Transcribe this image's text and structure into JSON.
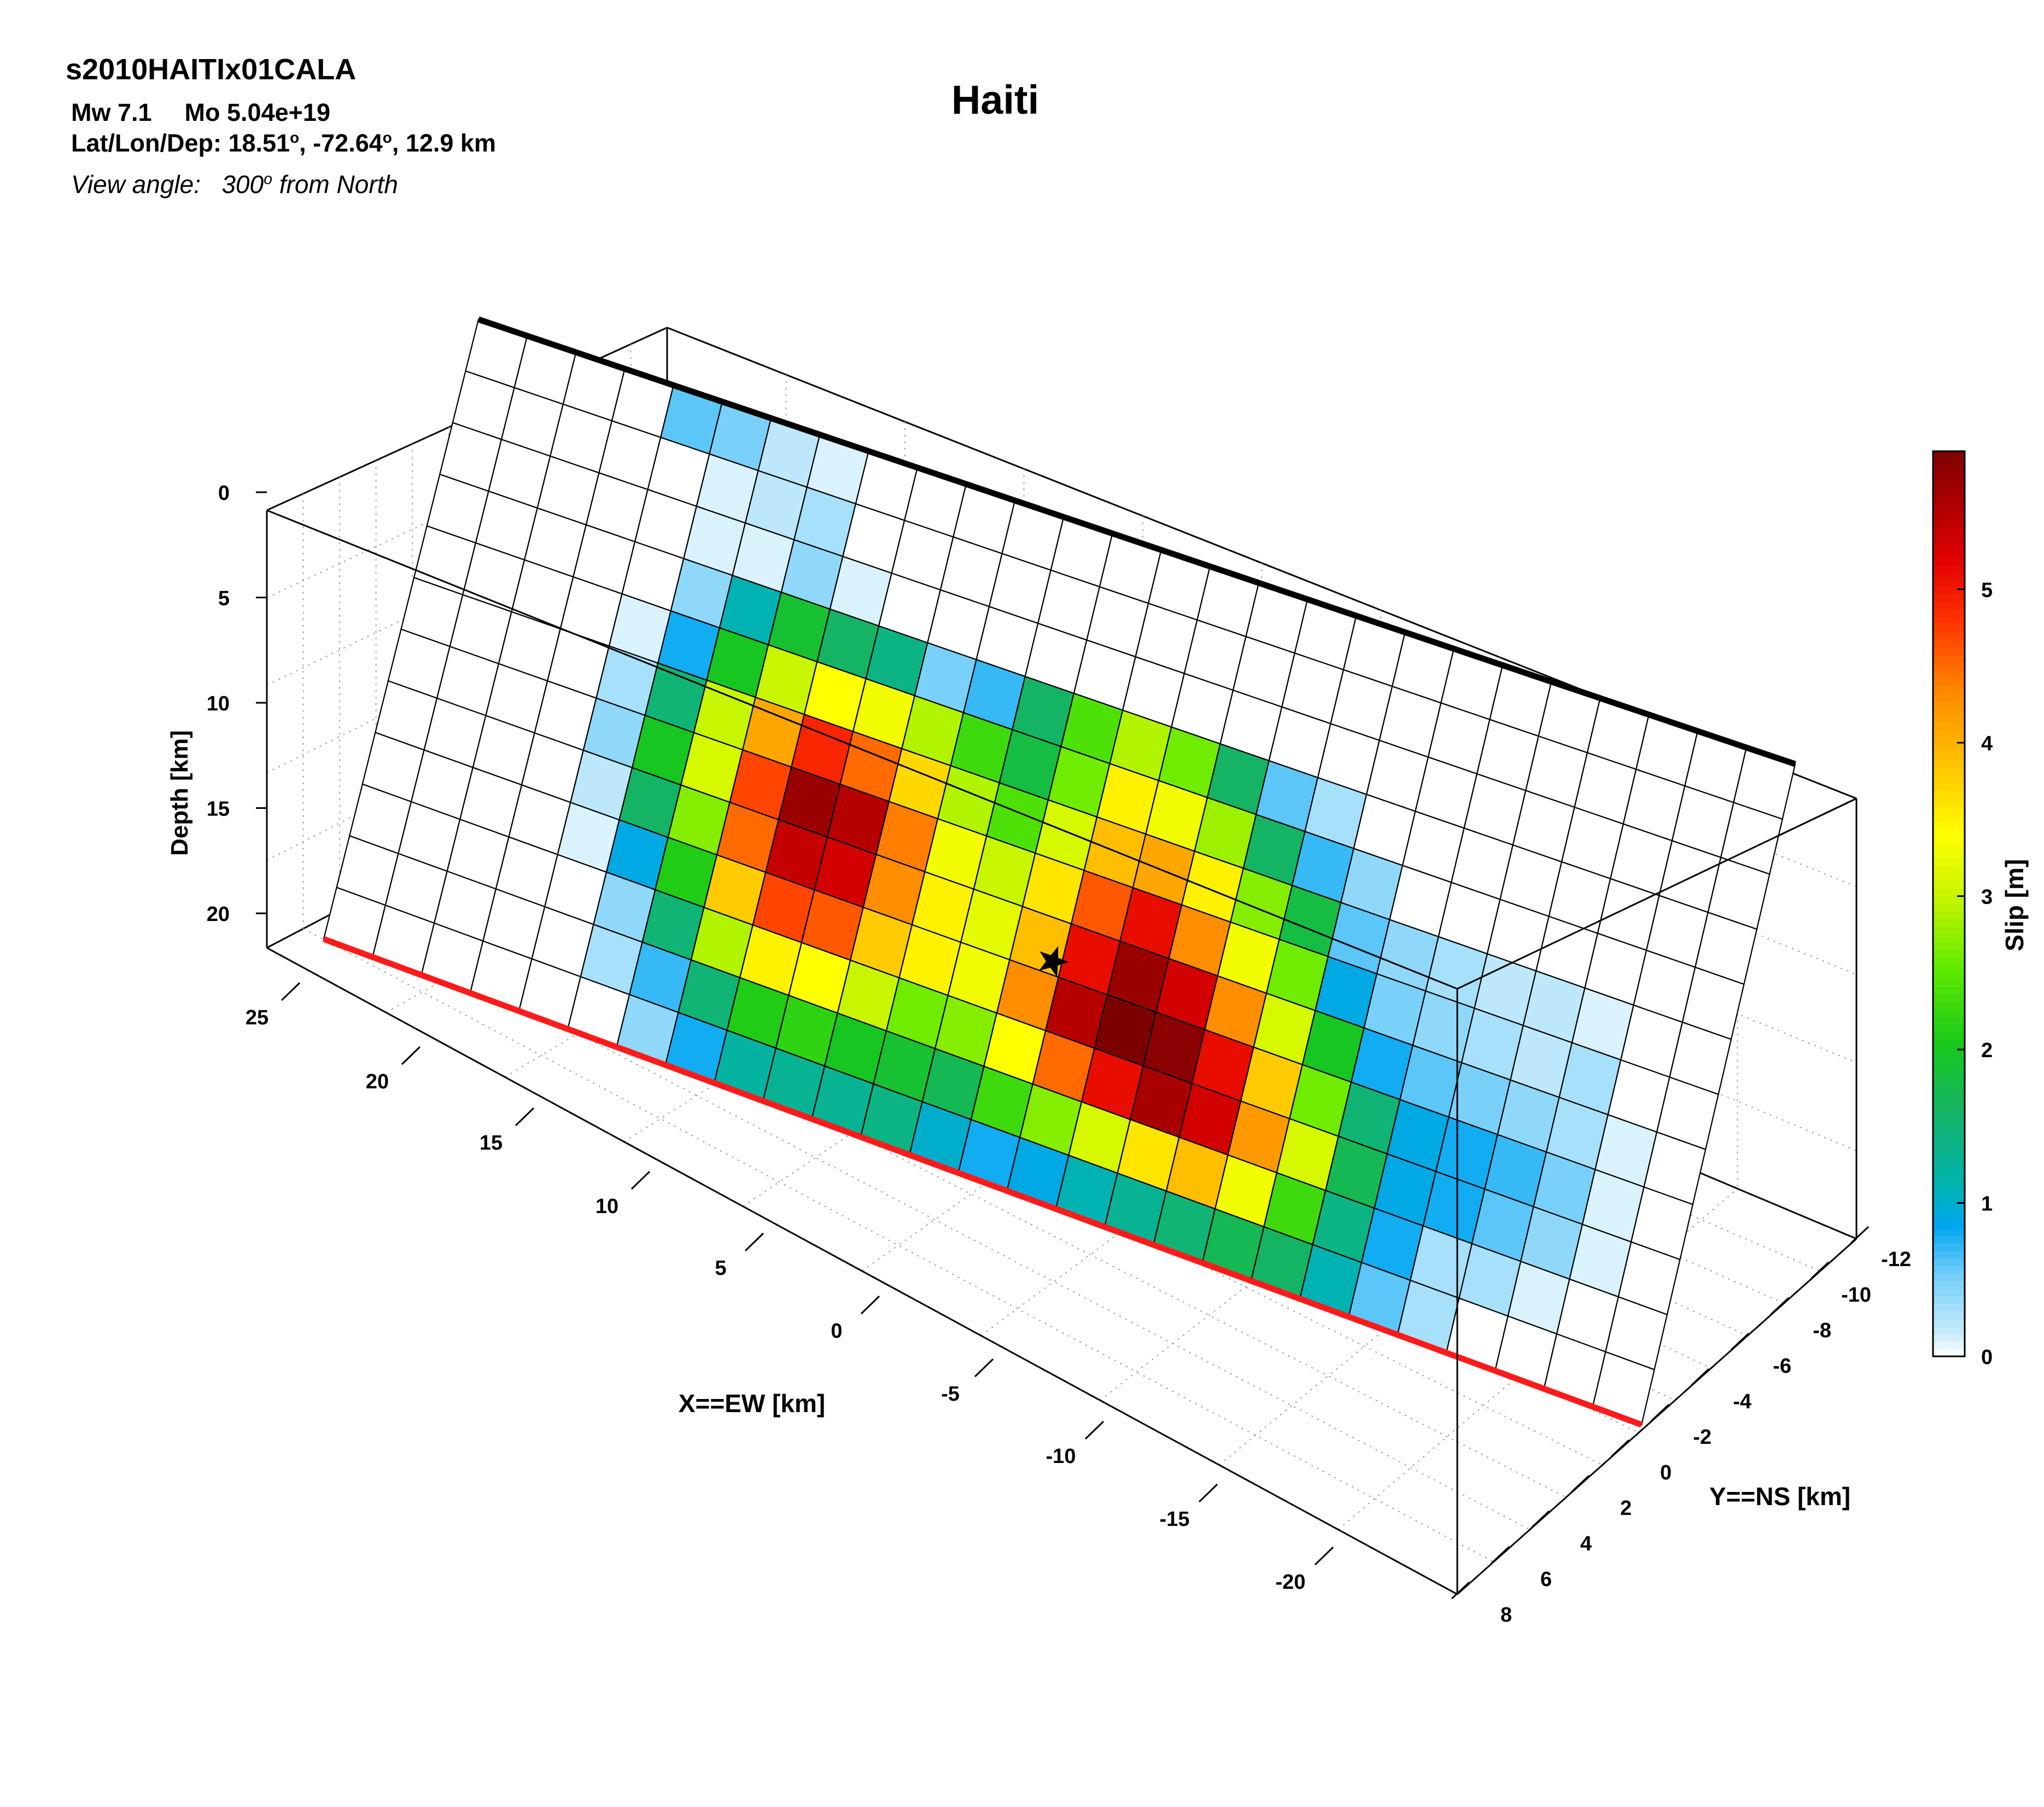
{
  "header": {
    "event_id": "s2010HAITIx01CALA",
    "magnitude": "Mw 7.1",
    "moment": "Mo 5.04e+19",
    "location_label": "Lat/Lon/Dep: ",
    "lat": "18.51",
    "lon": "-72.64",
    "depth_text": "12.9 km",
    "view_label": "View angle:",
    "view_value": "300",
    "view_suffix": "from North"
  },
  "chart_data": {
    "type": "heatmap",
    "title": "Haiti",
    "xlabel": "X==EW [km]",
    "ylabel": "Y==NS [km]",
    "zlabel": "Depth [km]",
    "x_ticks": [
      25,
      20,
      15,
      10,
      5,
      0,
      -5,
      -10,
      -15,
      -20
    ],
    "y_ticks": [
      -12,
      -10,
      -8,
      -6,
      -4,
      -2,
      0,
      2,
      4,
      6,
      8
    ],
    "z_ticks": [
      0,
      5,
      10,
      15,
      20
    ],
    "colorbar": {
      "label": "Slip [m]",
      "ticks": [
        0,
        1,
        2,
        3,
        4,
        5
      ],
      "range": [
        0,
        5.9
      ]
    },
    "grid": "on",
    "legend": "colorbar right",
    "fault_top_edge_color": "#000000",
    "fault_bottom_edge_color": "#ff1a1a",
    "hypocenter": {
      "lat": 18.51,
      "lon": -72.64,
      "depth_km": 12.9
    },
    "strike_cells": 27,
    "dip_cells": 12,
    "slip_m": [
      [
        0,
        0,
        0,
        0,
        0.6,
        0.5,
        0.2,
        0.1,
        0,
        0,
        0,
        0,
        0,
        0,
        0,
        0,
        0,
        0,
        0,
        0,
        0,
        0,
        0,
        0,
        0,
        0,
        0
      ],
      [
        0,
        0,
        0,
        0,
        0,
        0.1,
        0.2,
        0.3,
        0,
        0,
        0,
        0,
        0,
        0,
        0,
        0,
        0,
        0,
        0,
        0,
        0,
        0,
        0,
        0,
        0,
        0,
        0
      ],
      [
        0,
        0,
        0,
        0,
        0,
        0.1,
        0.1,
        0.4,
        0.1,
        0,
        0,
        0,
        0,
        0,
        0,
        0,
        0,
        0,
        0,
        0,
        0,
        0,
        0,
        0,
        0,
        0,
        0
      ],
      [
        0,
        0,
        0,
        0,
        0,
        0.4,
        1.1,
        1.9,
        1.6,
        1.4,
        0.5,
        0.7,
        1.6,
        2.4,
        2.9,
        2.6,
        1.6,
        0.6,
        0.3,
        0,
        0,
        0,
        0,
        0,
        0,
        0,
        0
      ],
      [
        0,
        0,
        0,
        0,
        0.1,
        0.8,
        2.0,
        3.0,
        3.4,
        3.3,
        2.9,
        2.3,
        1.8,
        2.6,
        3.5,
        3.3,
        2.8,
        1.6,
        0.7,
        0.4,
        0,
        0,
        0,
        0,
        0,
        0,
        0
      ],
      [
        0,
        0,
        0,
        0,
        0.3,
        1.5,
        3.0,
        4.1,
        4.9,
        4.5,
        3.7,
        2.9,
        2.4,
        3.1,
        3.9,
        4.1,
        3.5,
        2.7,
        1.8,
        0.6,
        0.4,
        0.3,
        0.2,
        0.2,
        0.1,
        0,
        0
      ],
      [
        0,
        0,
        0,
        0,
        0.4,
        2.0,
        3.1,
        4.7,
        5.7,
        5.5,
        4.4,
        3.3,
        3.0,
        3.6,
        4.6,
        5.1,
        4.3,
        3.3,
        2.6,
        0.9,
        0.5,
        0.4,
        0.3,
        0.2,
        0.3,
        0,
        0
      ],
      [
        0,
        0,
        0,
        0,
        0.2,
        1.6,
        2.7,
        4.5,
        5.4,
        5.3,
        4.3,
        3.5,
        3.2,
        3.9,
        5.1,
        5.7,
        5.3,
        4.3,
        3.1,
        2.0,
        0.8,
        0.6,
        0.5,
        0.4,
        0.3,
        0.1,
        0
      ],
      [
        0,
        0,
        0,
        0,
        0.1,
        0.9,
        2.1,
        3.8,
        4.7,
        4.6,
        3.8,
        3.5,
        3.3,
        4.3,
        5.5,
        5.9,
        5.8,
        5.1,
        3.8,
        2.6,
        1.5,
        0.9,
        0.8,
        0.7,
        0.5,
        0.1,
        0
      ],
      [
        0,
        0,
        0,
        0,
        0,
        0.4,
        1.5,
        2.9,
        3.5,
        3.4,
        3.0,
        2.6,
        2.7,
        3.4,
        4.5,
        5.1,
        5.6,
        5.3,
        4.2,
        3.1,
        1.7,
        0.9,
        0.8,
        0.6,
        0.4,
        0.1,
        0
      ],
      [
        0,
        0,
        0,
        0,
        0,
        0.3,
        0.7,
        1.5,
        2.1,
        2.2,
        2.0,
        1.9,
        1.7,
        2.3,
        2.7,
        3.1,
        3.6,
        3.9,
        3.3,
        2.3,
        1.4,
        0.8,
        0.3,
        0.3,
        0.1,
        0,
        0
      ],
      [
        0,
        0,
        0,
        0,
        0,
        0,
        0.4,
        0.8,
        1.2,
        1.3,
        1.3,
        1.4,
        1.0,
        0.8,
        0.9,
        1.1,
        1.3,
        1.5,
        1.7,
        1.6,
        1.1,
        0.6,
        0.3,
        0,
        0,
        0,
        0
      ]
    ]
  }
}
